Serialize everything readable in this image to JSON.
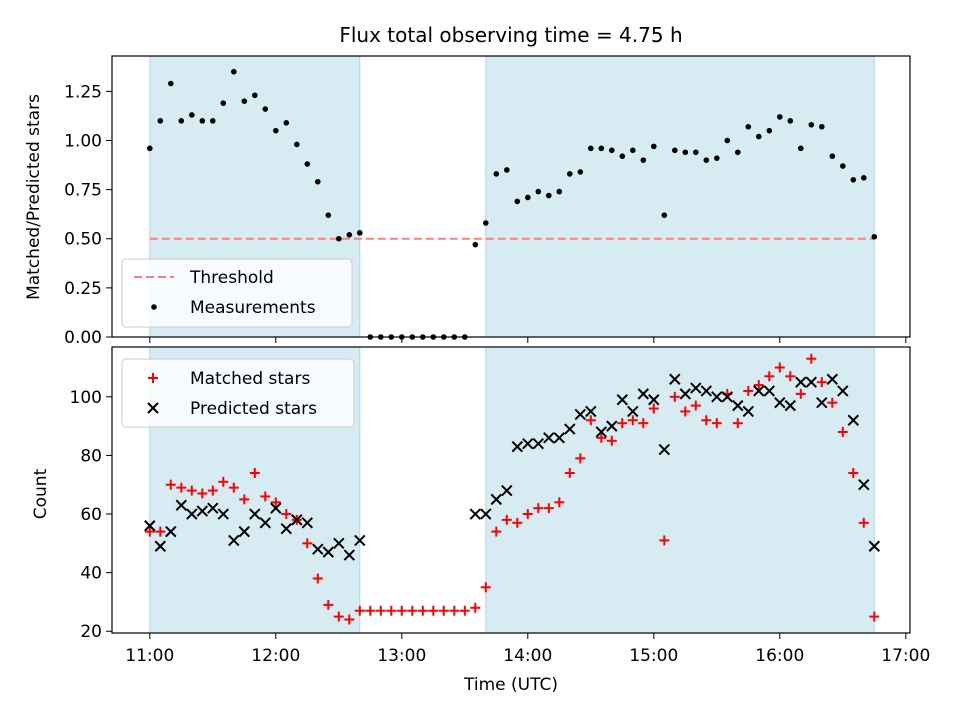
{
  "chart_data": [
    {
      "type": "scatter",
      "title": "Flux total observing time = 4.75 h",
      "xlabel": "",
      "ylabel": "Matched/Predicted stars",
      "xlim": [
        "10:42",
        "17:02"
      ],
      "ylim": [
        0,
        1.43
      ],
      "yticks": [
        "0.00",
        "0.25",
        "0.50",
        "0.75",
        "1.00",
        "1.25"
      ],
      "grid": false,
      "legend_position": "lower-left",
      "shaded_intervals": [
        [
          "11:00",
          "12:40"
        ],
        [
          "13:40",
          "16:45"
        ]
      ],
      "shade_color": "#add8e6",
      "threshold": {
        "name": "Threshold",
        "value": 0.5,
        "color": "#ff7f7f"
      },
      "series": [
        {
          "name": "Measurements",
          "color": "#000000",
          "x": [
            "11:00",
            "11:05",
            "11:10",
            "11:15",
            "11:20",
            "11:25",
            "11:30",
            "11:35",
            "11:40",
            "11:45",
            "11:50",
            "11:55",
            "12:00",
            "12:05",
            "12:10",
            "12:15",
            "12:20",
            "12:25",
            "12:30",
            "12:35",
            "12:40",
            "12:45",
            "12:50",
            "12:55",
            "13:00",
            "13:05",
            "13:10",
            "13:15",
            "13:20",
            "13:25",
            "13:30",
            "13:35",
            "13:40",
            "13:45",
            "13:50",
            "13:55",
            "14:00",
            "14:05",
            "14:10",
            "14:15",
            "14:20",
            "14:25",
            "14:30",
            "14:35",
            "14:40",
            "14:45",
            "14:50",
            "14:55",
            "15:00",
            "15:05",
            "15:10",
            "15:15",
            "15:20",
            "15:25",
            "15:30",
            "15:35",
            "15:40",
            "15:45",
            "15:50",
            "15:55",
            "16:00",
            "16:05",
            "16:10",
            "16:15",
            "16:20",
            "16:25",
            "16:30",
            "16:35",
            "16:40",
            "16:45"
          ],
          "y": [
            0.96,
            1.1,
            1.29,
            1.1,
            1.13,
            1.1,
            1.1,
            1.19,
            1.35,
            1.2,
            1.23,
            1.16,
            1.05,
            1.09,
            0.98,
            0.88,
            0.79,
            0.62,
            0.5,
            0.52,
            0.53,
            0,
            0,
            0,
            0,
            0,
            0,
            0,
            0,
            0,
            0,
            0.47,
            0.58,
            0.83,
            0.85,
            0.69,
            0.71,
            0.74,
            0.72,
            0.74,
            0.83,
            0.84,
            0.96,
            0.96,
            0.95,
            0.92,
            0.95,
            0.9,
            0.97,
            0.62,
            0.95,
            0.94,
            0.94,
            0.9,
            0.91,
            1.0,
            0.94,
            1.07,
            1.02,
            1.05,
            1.12,
            1.1,
            0.96,
            1.08,
            1.07,
            0.92,
            0.87,
            0.8,
            0.81,
            0.51
          ]
        }
      ]
    },
    {
      "type": "scatter",
      "title": "",
      "xlabel": "Time (UTC)",
      "ylabel": "Count",
      "xlim": [
        "10:42",
        "17:02"
      ],
      "ylim": [
        19.4,
        117
      ],
      "yticks": [
        "20",
        "40",
        "60",
        "80",
        "100"
      ],
      "xticks": [
        "11:00",
        "12:00",
        "13:00",
        "14:00",
        "15:00",
        "16:00",
        "17:00"
      ],
      "grid": false,
      "legend_position": "top-left",
      "shaded_intervals": [
        [
          "11:00",
          "12:40"
        ],
        [
          "13:40",
          "16:45"
        ]
      ],
      "shade_color": "#add8e6",
      "x": [
        "11:00",
        "11:05",
        "11:10",
        "11:15",
        "11:20",
        "11:25",
        "11:30",
        "11:35",
        "11:40",
        "11:45",
        "11:50",
        "11:55",
        "12:00",
        "12:05",
        "12:10",
        "12:15",
        "12:20",
        "12:25",
        "12:30",
        "12:35",
        "12:40",
        "12:45",
        "12:50",
        "12:55",
        "13:00",
        "13:05",
        "13:10",
        "13:15",
        "13:20",
        "13:25",
        "13:30",
        "13:35",
        "13:40",
        "13:45",
        "13:50",
        "13:55",
        "14:00",
        "14:05",
        "14:10",
        "14:15",
        "14:20",
        "14:25",
        "14:30",
        "14:35",
        "14:40",
        "14:45",
        "14:50",
        "14:55",
        "15:00",
        "15:05",
        "15:10",
        "15:15",
        "15:20",
        "15:25",
        "15:30",
        "15:35",
        "15:40",
        "15:45",
        "15:50",
        "15:55",
        "16:00",
        "16:05",
        "16:10",
        "16:15",
        "16:20",
        "16:25",
        "16:30",
        "16:35",
        "16:40",
        "16:45"
      ],
      "series": [
        {
          "name": "Matched stars",
          "marker": "+",
          "color": "#ff0000",
          "y": [
            54,
            54,
            70,
            69,
            68,
            67,
            68,
            71,
            69,
            65,
            74,
            66,
            64,
            60,
            58,
            50,
            38,
            29,
            25,
            24,
            27,
            27,
            27,
            27,
            27,
            27,
            27,
            27,
            27,
            27,
            27,
            28,
            35,
            54,
            58,
            57,
            60,
            62,
            62,
            64,
            74,
            79,
            92,
            86,
            85,
            91,
            92,
            91,
            96,
            51,
            100,
            95,
            97,
            92,
            91,
            101,
            91,
            102,
            104,
            107,
            110,
            107,
            101,
            113,
            105,
            98,
            88,
            74,
            57,
            25
          ]
        },
        {
          "name": "Predicted stars",
          "marker": "x",
          "color": "#000000",
          "y": [
            56,
            49,
            54,
            63,
            60,
            61,
            62,
            60,
            51,
            54,
            60,
            57,
            62,
            55,
            58,
            57,
            48,
            47,
            50,
            46,
            51,
            null,
            null,
            null,
            null,
            null,
            null,
            null,
            null,
            null,
            null,
            60,
            60,
            65,
            68,
            83,
            84,
            84,
            86,
            86,
            89,
            94,
            95,
            88,
            90,
            99,
            95,
            101,
            99,
            82,
            106,
            101,
            103,
            102,
            100,
            100,
            97,
            95,
            102,
            102,
            98,
            97,
            105,
            105,
            98,
            106,
            102,
            92,
            70,
            49
          ]
        }
      ]
    }
  ]
}
